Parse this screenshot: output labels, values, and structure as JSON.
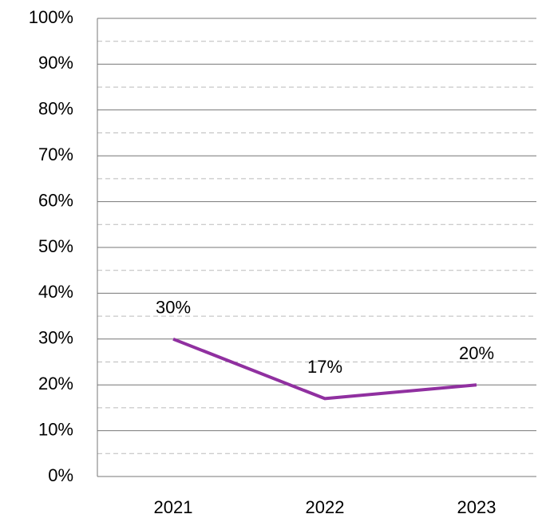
{
  "chart_data": {
    "type": "line",
    "categories": [
      "2021",
      "2022",
      "2023"
    ],
    "series": [
      {
        "color": "#9030a0",
        "values": [
          30,
          17,
          20
        ],
        "value_labels": [
          "30%",
          "17%",
          "20%"
        ]
      }
    ],
    "ylim": [
      0,
      100
    ],
    "yticks": [
      {
        "value": 0,
        "label": "0%"
      },
      {
        "value": 10,
        "label": "10%"
      },
      {
        "value": 20,
        "label": "20%"
      },
      {
        "value": 30,
        "label": "30%"
      },
      {
        "value": 40,
        "label": "40%"
      },
      {
        "value": 50,
        "label": "50%"
      },
      {
        "value": 60,
        "label": "60%"
      },
      {
        "value": 70,
        "label": "70%"
      },
      {
        "value": 80,
        "label": "80%"
      },
      {
        "value": 90,
        "label": "90%"
      },
      {
        "value": 100,
        "label": "100%"
      }
    ],
    "minor_yticks": [
      5,
      15,
      25,
      35,
      45,
      55,
      65,
      75,
      85,
      95
    ],
    "grid": true
  }
}
